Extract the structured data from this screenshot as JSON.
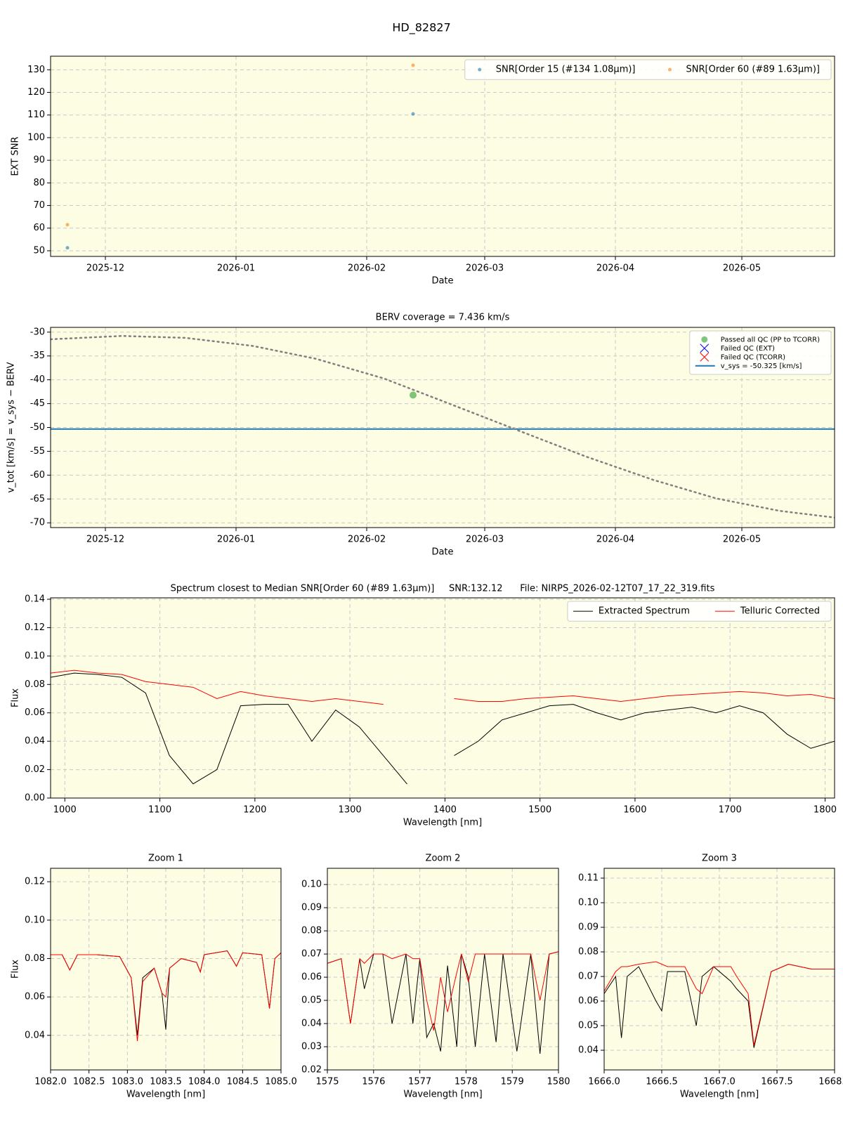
{
  "chart_data": [
    {
      "type": "scatter",
      "title": "HD_82827",
      "xlabel": "Date",
      "ylabel": "EXT SNR",
      "background": "#fdfde3",
      "grid": true,
      "legend": "upper right",
      "legend_columns": 2,
      "xlim": [
        "2025-11-18",
        "2026-05-23"
      ],
      "ylim": [
        47.5,
        136
      ],
      "xticks": [
        {
          "value": "2025-12-01",
          "label": "2025-12"
        },
        {
          "value": "2026-01-01",
          "label": "2026-01"
        },
        {
          "value": "2026-02-01",
          "label": "2026-02"
        },
        {
          "value": "2026-03-01",
          "label": "2026-03"
        },
        {
          "value": "2026-04-01",
          "label": "2026-04"
        },
        {
          "value": "2026-05-01",
          "label": "2026-05"
        }
      ],
      "yticks": [
        50,
        60,
        70,
        80,
        90,
        100,
        110,
        120,
        130
      ],
      "series": [
        {
          "name": "SNR[Order 15 (#134 1.08μm)]",
          "color": "#1f77b4",
          "marker": "o",
          "x": [
            "2025-11-22",
            "2026-02-12"
          ],
          "values": [
            51.3,
            110.5
          ]
        },
        {
          "name": "SNR[Order 60 (#89 1.63μm)]",
          "color": "#ff7f0e",
          "marker": "o",
          "x": [
            "2025-11-22",
            "2026-02-12"
          ],
          "values": [
            61.5,
            132
          ]
        }
      ]
    },
    {
      "type": "line",
      "title": "BERV coverage = 7.436 km/s",
      "xlabel": "Date",
      "ylabel": "v_tot [km/s] = v_sys − BERV",
      "background": "#fdfde3",
      "grid": true,
      "legend": "upper right",
      "legend_columns": 1,
      "xlim": [
        "2025-11-18",
        "2026-05-23"
      ],
      "ylim": [
        -71,
        -29
      ],
      "xticks": [
        {
          "value": "2025-12-01",
          "label": "2025-12"
        },
        {
          "value": "2026-01-01",
          "label": "2026-01"
        },
        {
          "value": "2026-02-01",
          "label": "2026-02"
        },
        {
          "value": "2026-03-01",
          "label": "2026-03"
        },
        {
          "value": "2026-04-01",
          "label": "2026-04"
        },
        {
          "value": "2026-05-01",
          "label": "2026-05"
        }
      ],
      "yticks": [
        -30,
        -35,
        -40,
        -45,
        -50,
        -55,
        -60,
        -65,
        -70
      ],
      "series": [
        {
          "color": "#808080",
          "linestyle": ":",
          "x": [
            "2025-11-18",
            "2025-12-05",
            "2025-12-20",
            "2026-01-05",
            "2026-01-20",
            "2026-02-05",
            "2026-02-20",
            "2026-03-08",
            "2026-03-25",
            "2026-04-10",
            "2026-04-25",
            "2026-05-10",
            "2026-05-23"
          ],
          "values": [
            -31.5,
            -30.8,
            -31.2,
            -32.9,
            -35.6,
            -39.7,
            -44.8,
            -50.3,
            -56.1,
            -61.0,
            -64.9,
            -67.5,
            -68.9
          ]
        },
        {
          "name": "Passed all QC (PP to TCORR)",
          "color": "#2ca02c",
          "marker": "o",
          "x": [
            "2026-02-12"
          ],
          "values": [
            -43.2
          ]
        },
        {
          "name": "Failed QC (EXT)",
          "color": "#0000ff",
          "marker": "x",
          "x": [],
          "values": []
        },
        {
          "name": "Failed QC (TCORR)",
          "color": "#ff0000",
          "marker": "x",
          "x": [],
          "values": []
        }
      ],
      "hlines": [
        {
          "name": "v_sys = -50.325 [km/s]",
          "value": -50.325,
          "color": "#1f77b4"
        }
      ]
    },
    {
      "type": "line",
      "title": "Spectrum closest to Median SNR[Order 60 (#89 1.63μm)]     SNR:132.12      File: NIRPS_2026-02-12T07_17_22_319.fits",
      "xlabel": "Wavelength [nm]",
      "ylabel": "Flux",
      "background": "#fdfde3",
      "grid": true,
      "legend": "upper right",
      "legend_columns": 2,
      "xlim": [
        985,
        1810
      ],
      "ylim": [
        0,
        0.141
      ],
      "xticks": [
        1000,
        1100,
        1200,
        1300,
        1400,
        1500,
        1600,
        1700,
        1800
      ],
      "yticks": [
        {
          "value": 0,
          "label": "0.00"
        },
        {
          "value": 0.02,
          "label": "0.02"
        },
        {
          "value": 0.04,
          "label": "0.04"
        },
        {
          "value": 0.06,
          "label": "0.06"
        },
        {
          "value": 0.08,
          "label": "0.08"
        },
        {
          "value": 0.1,
          "label": "0.10"
        },
        {
          "value": 0.12,
          "label": "0.12"
        },
        {
          "value": 0.14,
          "label": "0.14"
        }
      ],
      "series": [
        {
          "name": "Extracted Spectrum",
          "color": "#000000",
          "linestyle": "-",
          "x": [
            985,
            1010,
            1035,
            1060,
            1085,
            1110,
            1135,
            1160,
            1185,
            1210,
            1235,
            1260,
            1285,
            1310,
            1335,
            1360,
            1385,
            1410,
            1435,
            1460,
            1485,
            1510,
            1535,
            1560,
            1585,
            1610,
            1635,
            1660,
            1685,
            1710,
            1735,
            1760,
            1785,
            1810
          ],
          "values": [
            0.085,
            0.088,
            0.087,
            0.085,
            0.074,
            0.03,
            0.01,
            0.02,
            0.065,
            0.066,
            0.066,
            0.04,
            0.062,
            0.05,
            0.03,
            0.01,
            null,
            0.03,
            0.04,
            0.055,
            0.06,
            0.065,
            0.066,
            0.06,
            0.055,
            0.06,
            0.062,
            0.064,
            0.06,
            0.065,
            0.06,
            0.045,
            0.035,
            0.04
          ]
        },
        {
          "name": "Telluric Corrected",
          "color": "#ff0000",
          "linestyle": "-",
          "x": [
            985,
            1010,
            1035,
            1060,
            1085,
            1110,
            1135,
            1160,
            1185,
            1210,
            1235,
            1260,
            1285,
            1310,
            1335,
            1360,
            1385,
            1410,
            1435,
            1460,
            1485,
            1510,
            1535,
            1560,
            1585,
            1610,
            1635,
            1660,
            1685,
            1710,
            1735,
            1760,
            1785,
            1810
          ],
          "values": [
            0.088,
            0.09,
            0.088,
            0.087,
            0.082,
            0.08,
            0.078,
            0.07,
            0.075,
            0.072,
            0.07,
            0.068,
            0.07,
            0.068,
            0.066,
            null,
            null,
            0.07,
            0.068,
            0.068,
            0.07,
            0.071,
            0.072,
            0.07,
            0.068,
            0.07,
            0.072,
            0.073,
            0.074,
            0.075,
            0.074,
            0.072,
            0.073,
            0.07
          ]
        }
      ]
    },
    {
      "type": "line",
      "title": "Zoom 1",
      "xlabel": "Wavelength [nm]",
      "ylabel": "Flux",
      "background": "#fdfde3",
      "grid": true,
      "xlim": [
        1082,
        1085
      ],
      "ylim": [
        0.022,
        0.127
      ],
      "xticks": [
        {
          "value": 1082,
          "label": "1082.0"
        },
        {
          "value": 1082.5,
          "label": "1082.5"
        },
        {
          "value": 1083,
          "label": "1083.0"
        },
        {
          "value": 1083.5,
          "label": "1083.5"
        },
        {
          "value": 1084,
          "label": "1084.0"
        },
        {
          "value": 1084.5,
          "label": "1084.5"
        },
        {
          "value": 1085,
          "label": "1085.0"
        }
      ],
      "yticks": [
        {
          "value": 0.04,
          "label": "0.04"
        },
        {
          "value": 0.06,
          "label": "0.06"
        },
        {
          "value": 0.08,
          "label": "0.08"
        },
        {
          "value": 0.1,
          "label": "0.10"
        },
        {
          "value": 0.12,
          "label": "0.12"
        }
      ],
      "series": [
        {
          "color": "#000000",
          "linestyle": "-",
          "x": [
            1082.0,
            1082.15,
            1082.25,
            1082.35,
            1082.6,
            1082.9,
            1083.05,
            1083.13,
            1083.2,
            1083.35,
            1083.45,
            1083.5,
            1083.55,
            1083.7,
            1083.9,
            1083.95,
            1084.0,
            1084.3,
            1084.42,
            1084.5,
            1084.75,
            1084.85,
            1084.92,
            1085.0
          ],
          "values": [
            0.082,
            0.082,
            0.074,
            0.082,
            0.082,
            0.081,
            0.07,
            0.04,
            0.07,
            0.075,
            0.062,
            0.043,
            0.075,
            0.08,
            0.078,
            0.073,
            0.082,
            0.084,
            0.076,
            0.083,
            0.082,
            0.054,
            0.08,
            0.083
          ]
        },
        {
          "color": "#ff0000",
          "linestyle": "-",
          "x": [
            1082.0,
            1082.15,
            1082.25,
            1082.35,
            1082.6,
            1082.9,
            1083.05,
            1083.13,
            1083.2,
            1083.35,
            1083.45,
            1083.5,
            1083.55,
            1083.7,
            1083.9,
            1083.95,
            1084.0,
            1084.3,
            1084.42,
            1084.5,
            1084.75,
            1084.85,
            1084.92,
            1085.0
          ],
          "values": [
            0.082,
            0.082,
            0.074,
            0.082,
            0.082,
            0.081,
            0.07,
            0.037,
            0.068,
            0.075,
            0.062,
            0.06,
            0.075,
            0.08,
            0.078,
            0.073,
            0.082,
            0.084,
            0.076,
            0.083,
            0.082,
            0.054,
            0.08,
            0.083
          ]
        }
      ]
    },
    {
      "type": "line",
      "title": "Zoom 2",
      "xlabel": "Wavelength [nm]",
      "background": "#fdfde3",
      "grid": true,
      "xlim": [
        1575,
        1580
      ],
      "ylim": [
        0.02,
        0.107
      ],
      "xticks": [
        1575,
        1576,
        1577,
        1578,
        1579,
        1580
      ],
      "yticks": [
        {
          "value": 0.02,
          "label": "0.02"
        },
        {
          "value": 0.03,
          "label": "0.03"
        },
        {
          "value": 0.04,
          "label": "0.04"
        },
        {
          "value": 0.05,
          "label": "0.05"
        },
        {
          "value": 0.06,
          "label": "0.06"
        },
        {
          "value": 0.07,
          "label": "0.07"
        },
        {
          "value": 0.08,
          "label": "0.08"
        },
        {
          "value": 0.09,
          "label": "0.09"
        },
        {
          "value": 0.1,
          "label": "0.10"
        }
      ],
      "series": [
        {
          "color": "#000000",
          "linestyle": "-",
          "x": [
            1575,
            1575.3,
            1575.5,
            1575.7,
            1575.8,
            1576,
            1576.2,
            1576.4,
            1576.7,
            1576.85,
            1577,
            1577.15,
            1577.3,
            1577.45,
            1577.6,
            1577.8,
            1577.9,
            1578.05,
            1578.2,
            1578.4,
            1578.65,
            1578.8,
            1579.1,
            1579.4,
            1579.6,
            1579.8,
            1580
          ],
          "values": [
            0.066,
            0.068,
            0.04,
            0.068,
            0.055,
            0.07,
            0.07,
            0.04,
            0.07,
            0.04,
            0.068,
            0.034,
            0.04,
            0.028,
            0.065,
            0.03,
            0.07,
            0.06,
            0.03,
            0.07,
            0.032,
            0.07,
            0.028,
            0.07,
            0.027,
            0.07,
            0.071
          ]
        },
        {
          "color": "#ff0000",
          "linestyle": "-",
          "x": [
            1575,
            1575.3,
            1575.5,
            1575.7,
            1575.8,
            1576,
            1576.2,
            1576.4,
            1576.7,
            1576.85,
            1577,
            1577.15,
            1577.3,
            1577.45,
            1577.6,
            1577.8,
            1577.9,
            1578.05,
            1578.2,
            1578.4,
            1578.65,
            1578.8,
            1579.1,
            1579.4,
            1579.6,
            1579.8,
            1580
          ],
          "values": [
            0.066,
            0.068,
            0.04,
            0.068,
            0.066,
            0.07,
            0.07,
            0.068,
            0.07,
            0.068,
            0.068,
            0.05,
            0.037,
            0.06,
            0.045,
            0.062,
            0.07,
            0.058,
            0.07,
            0.07,
            0.07,
            0.07,
            0.07,
            0.07,
            0.05,
            0.07,
            0.071
          ]
        }
      ]
    },
    {
      "type": "line",
      "title": "Zoom 3",
      "xlabel": "Wavelength [nm]",
      "background": "#fdfde3",
      "grid": true,
      "xlim": [
        1666,
        1668
      ],
      "ylim": [
        0.032,
        0.114
      ],
      "xticks": [
        {
          "value": 1666,
          "label": "1666.0"
        },
        {
          "value": 1666.5,
          "label": "1666.5"
        },
        {
          "value": 1667,
          "label": "1667.0"
        },
        {
          "value": 1667.5,
          "label": "1667.5"
        },
        {
          "value": 1668,
          "label": "1668.0"
        }
      ],
      "yticks": [
        {
          "value": 0.04,
          "label": "0.04"
        },
        {
          "value": 0.05,
          "label": "0.05"
        },
        {
          "value": 0.06,
          "label": "0.06"
        },
        {
          "value": 0.07,
          "label": "0.07"
        },
        {
          "value": 0.08,
          "label": "0.08"
        },
        {
          "value": 0.09,
          "label": "0.09"
        },
        {
          "value": 0.1,
          "label": "0.10"
        },
        {
          "value": 0.11,
          "label": "0.11"
        }
      ],
      "series": [
        {
          "color": "#000000",
          "linestyle": "-",
          "x": [
            1666,
            1666.1,
            1666.15,
            1666.2,
            1666.3,
            1666.45,
            1666.5,
            1666.55,
            1666.7,
            1666.8,
            1666.85,
            1666.95,
            1667.1,
            1667.15,
            1667.25,
            1667.3,
            1667.45,
            1667.6,
            1667.8,
            1668
          ],
          "values": [
            0.063,
            0.07,
            0.045,
            0.07,
            0.074,
            0.06,
            0.056,
            0.072,
            0.072,
            0.05,
            0.07,
            0.074,
            0.068,
            0.065,
            0.06,
            0.041,
            0.072,
            0.075,
            0.073,
            0.073
          ]
        },
        {
          "color": "#ff0000",
          "linestyle": "-",
          "x": [
            1666,
            1666.1,
            1666.15,
            1666.2,
            1666.3,
            1666.45,
            1666.5,
            1666.55,
            1666.7,
            1666.8,
            1666.85,
            1666.95,
            1667.1,
            1667.15,
            1667.25,
            1667.3,
            1667.45,
            1667.6,
            1667.8,
            1668
          ],
          "values": [
            0.064,
            0.072,
            0.074,
            0.074,
            0.075,
            0.076,
            0.075,
            0.074,
            0.074,
            0.065,
            0.063,
            0.074,
            0.074,
            0.07,
            0.063,
            0.042,
            0.072,
            0.075,
            0.073,
            0.073
          ]
        }
      ]
    }
  ]
}
